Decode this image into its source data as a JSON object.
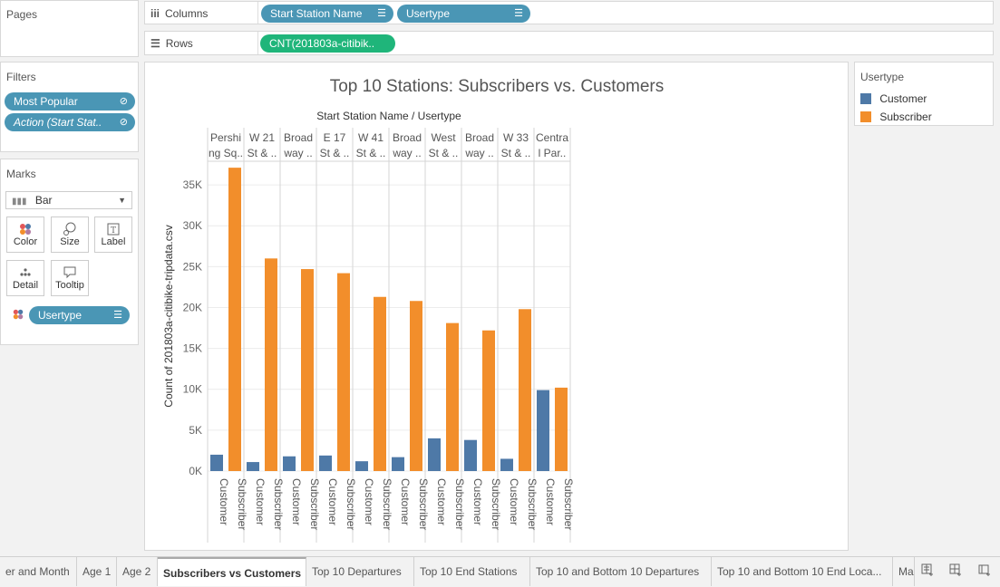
{
  "pages": {
    "title": "Pages"
  },
  "columns_shelf": {
    "label": "Columns",
    "pills": [
      {
        "label": "Start Station Name",
        "icon": "sort-descending-icon"
      },
      {
        "label": "Usertype",
        "icon": "sort-ascending-icon"
      }
    ]
  },
  "rows_shelf": {
    "label": "Rows",
    "pills": [
      {
        "label": "CNT(201803a-citibik.."
      }
    ]
  },
  "filters": {
    "title": "Filters",
    "pills": [
      {
        "label": "Most Popular",
        "icon": "link-icon"
      },
      {
        "label": "Action (Start Stat..",
        "icon": "link-icon"
      }
    ]
  },
  "marks": {
    "title": "Marks",
    "type_selected": "Bar",
    "buttons": [
      "Color",
      "Size",
      "Label",
      "Detail",
      "Tooltip"
    ],
    "color_pill": "Usertype"
  },
  "legend": {
    "title": "Usertype",
    "items": [
      {
        "label": "Customer",
        "color": "#4e79a7"
      },
      {
        "label": "Subscriber",
        "color": "#f28e2b"
      }
    ]
  },
  "chart_data": {
    "type": "bar",
    "title": "Top 10 Stations: Subscribers vs. Customers",
    "header_label": "Start Station Name / Usertype",
    "ylabel": "Count of 201803a-citibike-tripdata.csv",
    "ylim": [
      0,
      38000
    ],
    "yticks": [
      0,
      5000,
      10000,
      15000,
      20000,
      25000,
      30000,
      35000
    ],
    "ytick_labels": [
      "0K",
      "5K",
      "10K",
      "15K",
      "20K",
      "25K",
      "30K",
      "35K"
    ],
    "categories": [
      {
        "line1": "Pershi",
        "line2": "ng Sq.."
      },
      {
        "line1": "W 21",
        "line2": "St & .."
      },
      {
        "line1": "Broad",
        "line2": "way .."
      },
      {
        "line1": "E 17",
        "line2": "St & .."
      },
      {
        "line1": "W 41",
        "line2": "St & .."
      },
      {
        "line1": "Broad",
        "line2": "way .."
      },
      {
        "line1": "West",
        "line2": "St & .."
      },
      {
        "line1": "Broad",
        "line2": "way .."
      },
      {
        "line1": "W 33",
        "line2": "St & .."
      },
      {
        "line1": "Centra",
        "line2": "l Par.."
      }
    ],
    "sub_categories": [
      "Customer",
      "Subscriber"
    ],
    "series": [
      {
        "name": "Customer",
        "color": "#4e79a7",
        "values": [
          2000,
          1100,
          1800,
          1900,
          1200,
          1700,
          4000,
          3800,
          1500,
          9900
        ]
      },
      {
        "name": "Subscriber",
        "color": "#f28e2b",
        "values": [
          37100,
          26000,
          24700,
          24200,
          21300,
          20800,
          18100,
          17200,
          19800,
          10200
        ]
      }
    ],
    "grid": true,
    "legend_position": "right"
  },
  "tabs": {
    "items": [
      "er and Month",
      "Age 1",
      "Age 2",
      "Subscribers vs Customers",
      "Top 10 Departures",
      "Top 10 End Stations",
      "Top 10 and Bottom 10 Departures",
      "Top 10 and Bottom 10 End Loca...",
      "Ma"
    ],
    "active": "Subscribers vs Customers",
    "icons": [
      "new-worksheet-icon",
      "new-dashboard-icon",
      "new-story-icon"
    ]
  }
}
